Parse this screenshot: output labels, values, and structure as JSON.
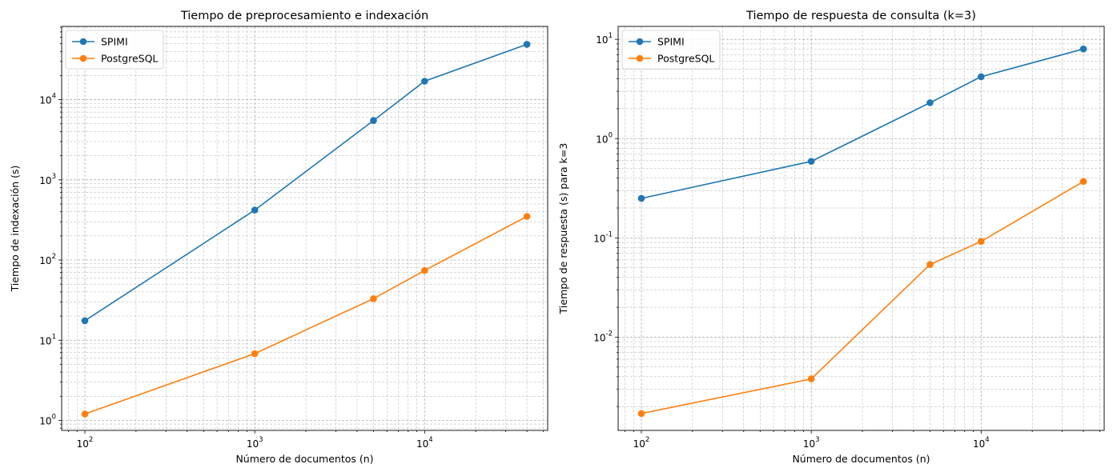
{
  "chart_data": [
    {
      "type": "line",
      "title": "Tiempo de preprocesamiento e indexación",
      "xlabel": "Número de documentos (n)",
      "ylabel": "Tiempo de indexación (s)",
      "xscale": "log",
      "yscale": "log",
      "xlim": [
        73,
        53000
      ],
      "ylim": [
        0.75,
        82000
      ],
      "xticks": [
        100,
        1000,
        10000
      ],
      "yticks": [
        1,
        10,
        100,
        1000,
        10000
      ],
      "grid": "both major and minor, dashed",
      "legend": "top-left",
      "x": [
        100,
        1000,
        5000,
        10000,
        40000
      ],
      "series": [
        {
          "name": "SPIMI",
          "color": "#1f77b4",
          "values": [
            17.5,
            420,
            5500,
            17000,
            49000
          ]
        },
        {
          "name": "PostgreSQL",
          "color": "#ff7f0e",
          "values": [
            1.2,
            6.8,
            33,
            74,
            350
          ]
        }
      ]
    },
    {
      "type": "line",
      "title": "Tiempo de respuesta de consulta (k=3)",
      "xlabel": "Número de documentos (n)",
      "ylabel": "Tiempo de respuesta (s) para k=3",
      "xscale": "log",
      "yscale": "log",
      "xlim": [
        73,
        53000
      ],
      "ylim": [
        0.00115,
        13.5
      ],
      "xticks": [
        100,
        1000,
        10000
      ],
      "yticks": [
        0.01,
        0.1,
        1,
        10
      ],
      "grid": "both major and minor, dashed",
      "legend": "top-left",
      "x": [
        100,
        1000,
        5000,
        10000,
        40000
      ],
      "series": [
        {
          "name": "SPIMI",
          "color": "#1f77b4",
          "values": [
            0.25,
            0.59,
            2.3,
            4.2,
            8.0
          ]
        },
        {
          "name": "PostgreSQL",
          "color": "#ff7f0e",
          "values": [
            0.0017,
            0.0038,
            0.054,
            0.092,
            0.37
          ]
        }
      ]
    }
  ]
}
